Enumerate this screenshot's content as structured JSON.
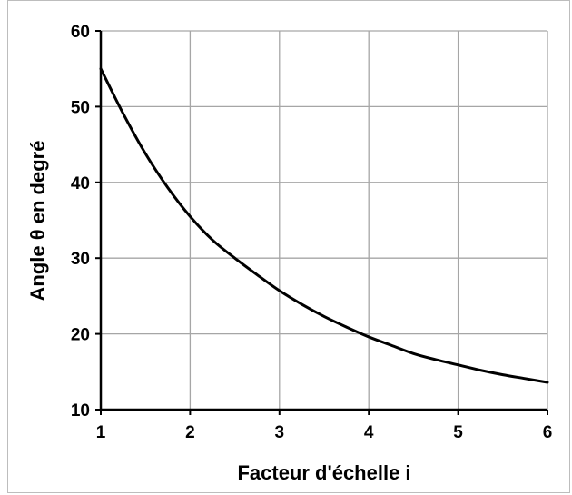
{
  "chart_data": {
    "type": "line",
    "title": "",
    "xlabel": "Facteur d'échelle i",
    "ylabel": "Angle θ en degré",
    "xlim": [
      1,
      6
    ],
    "ylim": [
      10,
      60
    ],
    "x_ticks": [
      "1",
      "2",
      "3",
      "4",
      "5",
      "6"
    ],
    "y_ticks": [
      "10",
      "20",
      "30",
      "40",
      "50",
      "60"
    ],
    "grid": true,
    "legend": "none",
    "series": [
      {
        "color": "#000000",
        "x": [
          1,
          1.25,
          1.5,
          1.75,
          2,
          2.25,
          2.5,
          2.75,
          3,
          3.25,
          3.5,
          3.75,
          4,
          4.25,
          4.5,
          4.75,
          5,
          5.25,
          5.5,
          5.75,
          6
        ],
        "y": [
          55.0,
          49.1,
          43.8,
          39.3,
          35.5,
          32.4,
          30.0,
          27.8,
          25.7,
          23.9,
          22.3,
          20.9,
          19.6,
          18.5,
          17.4,
          16.6,
          15.9,
          15.2,
          14.6,
          14.1,
          13.6
        ]
      }
    ]
  }
}
